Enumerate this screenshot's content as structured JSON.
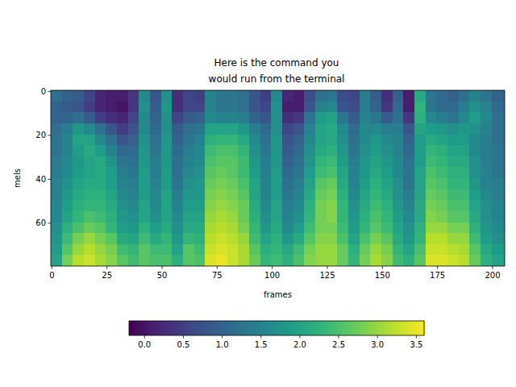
{
  "chart_data": {
    "type": "heatmap",
    "title": "Here is the command you\nwould run from the terminal",
    "x_label": "frames",
    "y_label": "mels",
    "xlim": [
      -0.5,
      205.5
    ],
    "ylim": [
      79.5,
      -0.5
    ],
    "xticks": [
      0,
      25,
      50,
      75,
      100,
      125,
      150,
      175,
      200
    ],
    "yticks": [
      0,
      20,
      40,
      60
    ],
    "x_edges": [
      -0.5,
      4.5,
      9.5,
      14.5,
      19.5,
      24.5,
      29.5,
      34.5,
      39.5,
      44.5,
      49.5,
      54.5,
      59.5,
      64.5,
      69.5,
      74.5,
      79.5,
      84.5,
      89.5,
      94.5,
      99.5,
      104.5,
      109.5,
      114.5,
      119.5,
      124.5,
      129.5,
      134.5,
      139.5,
      144.5,
      149.5,
      154.5,
      159.5,
      164.5,
      169.5,
      174.5,
      179.5,
      184.5,
      189.5,
      194.5,
      199.5,
      204.5,
      205.5
    ],
    "y_edges": [
      -0.5,
      4.5,
      9.5,
      14.5,
      19.5,
      24.5,
      29.5,
      34.5,
      39.5,
      44.5,
      49.5,
      54.5,
      59.5,
      64.5,
      69.5,
      74.5,
      79.5
    ],
    "cells": [
      [
        1.2,
        1.0,
        1.0,
        1.2,
        1.3,
        1.3,
        1.4,
        1.4,
        1.5,
        1.5,
        1.6,
        1.6,
        1.7,
        1.8,
        1.9,
        2.0
      ],
      [
        1.0,
        0.9,
        1.0,
        1.4,
        1.5,
        1.5,
        1.6,
        1.6,
        1.7,
        1.8,
        1.9,
        2.0,
        2.2,
        2.4,
        2.6,
        2.8
      ],
      [
        0.9,
        0.8,
        1.2,
        1.8,
        2.0,
        1.9,
        1.8,
        1.9,
        2.0,
        2.1,
        2.2,
        2.3,
        2.5,
        2.8,
        3.0,
        3.2
      ],
      [
        0.6,
        0.5,
        0.9,
        1.6,
        2.0,
        2.1,
        2.0,
        2.0,
        2.1,
        2.2,
        2.3,
        2.5,
        2.7,
        3.0,
        3.2,
        3.3
      ],
      [
        0.2,
        0.2,
        0.5,
        1.2,
        1.6,
        1.9,
        2.1,
        2.1,
        2.1,
        2.2,
        2.3,
        2.4,
        2.6,
        2.8,
        3.0,
        3.1
      ],
      [
        0.1,
        0.1,
        0.3,
        0.8,
        1.2,
        1.5,
        1.7,
        1.9,
        1.9,
        2.0,
        2.1,
        2.2,
        2.3,
        2.6,
        2.8,
        2.9
      ],
      [
        0.1,
        0.0,
        0.2,
        0.5,
        0.8,
        1.1,
        1.3,
        1.4,
        1.5,
        1.6,
        1.7,
        1.8,
        1.9,
        2.1,
        2.4,
        2.6
      ],
      [
        0.4,
        0.4,
        0.6,
        0.8,
        1.0,
        1.1,
        1.2,
        1.3,
        1.4,
        1.5,
        1.6,
        1.7,
        1.8,
        2.0,
        2.3,
        2.4
      ],
      [
        1.6,
        1.7,
        1.6,
        1.6,
        1.7,
        1.8,
        1.8,
        1.9,
        1.9,
        1.9,
        2.0,
        2.0,
        2.2,
        2.4,
        2.6,
        2.6
      ],
      [
        0.8,
        0.9,
        1.0,
        1.1,
        1.2,
        1.3,
        1.4,
        1.4,
        1.5,
        1.6,
        1.6,
        1.7,
        1.9,
        2.1,
        2.4,
        2.5
      ],
      [
        1.7,
        1.8,
        1.7,
        1.7,
        1.8,
        1.8,
        1.8,
        1.9,
        1.9,
        2.0,
        2.0,
        2.0,
        2.1,
        2.3,
        2.4,
        2.5
      ],
      [
        0.3,
        0.3,
        0.6,
        0.9,
        1.0,
        1.1,
        1.2,
        1.2,
        1.3,
        1.4,
        1.5,
        1.6,
        1.7,
        1.8,
        2.0,
        2.2
      ],
      [
        0.6,
        0.6,
        0.9,
        1.2,
        1.3,
        1.4,
        1.5,
        1.6,
        1.7,
        1.8,
        1.9,
        2.0,
        2.1,
        2.3,
        2.6,
        2.6
      ],
      [
        0.5,
        0.6,
        1.0,
        1.3,
        1.5,
        1.6,
        1.6,
        1.7,
        1.8,
        1.8,
        1.9,
        2.0,
        2.1,
        2.2,
        2.4,
        2.5
      ],
      [
        1.5,
        1.5,
        1.6,
        2.0,
        2.2,
        2.4,
        2.5,
        2.6,
        2.7,
        2.8,
        2.9,
        3.0,
        3.1,
        3.2,
        3.3,
        3.4
      ],
      [
        1.3,
        1.3,
        1.5,
        2.0,
        2.3,
        2.5,
        2.6,
        2.7,
        2.8,
        2.9,
        3.0,
        3.1,
        3.2,
        3.3,
        3.4,
        3.5
      ],
      [
        1.3,
        1.3,
        1.5,
        2.0,
        2.3,
        2.5,
        2.6,
        2.6,
        2.7,
        2.8,
        2.9,
        3.0,
        3.1,
        3.2,
        3.3,
        3.3
      ],
      [
        1.2,
        1.2,
        1.4,
        1.8,
        2.1,
        2.3,
        2.4,
        2.4,
        2.5,
        2.6,
        2.7,
        2.7,
        2.8,
        3.0,
        3.1,
        3.1
      ],
      [
        0.8,
        0.8,
        1.0,
        1.4,
        1.6,
        1.7,
        1.8,
        1.9,
        2.0,
        2.0,
        2.1,
        2.2,
        2.3,
        2.4,
        2.6,
        2.7
      ],
      [
        0.5,
        0.6,
        0.8,
        1.1,
        1.2,
        1.3,
        1.4,
        1.4,
        1.5,
        1.5,
        1.6,
        1.7,
        1.8,
        2.0,
        2.2,
        2.3
      ],
      [
        1.6,
        1.7,
        1.7,
        1.7,
        1.8,
        1.8,
        1.8,
        1.9,
        1.9,
        1.9,
        2.0,
        2.0,
        2.1,
        2.2,
        2.3,
        2.4
      ],
      [
        0.2,
        0.1,
        0.3,
        0.6,
        0.8,
        0.9,
        1.0,
        1.1,
        1.2,
        1.3,
        1.4,
        1.5,
        1.6,
        1.8,
        2.1,
        2.2
      ],
      [
        0.1,
        0.1,
        0.4,
        0.8,
        1.0,
        1.1,
        1.2,
        1.3,
        1.4,
        1.5,
        1.6,
        1.7,
        1.9,
        2.1,
        2.4,
        2.5
      ],
      [
        0.7,
        0.8,
        1.3,
        1.5,
        1.6,
        1.7,
        1.8,
        1.9,
        2.0,
        2.1,
        2.2,
        2.3,
        2.4,
        2.6,
        2.8,
        2.9
      ],
      [
        1.2,
        1.5,
        1.9,
        2.0,
        2.0,
        2.1,
        2.3,
        2.4,
        2.6,
        2.7,
        2.8,
        2.8,
        2.8,
        2.9,
        3.0,
        3.0
      ],
      [
        1.3,
        1.6,
        2.0,
        2.1,
        2.1,
        2.2,
        2.4,
        2.5,
        2.7,
        2.8,
        2.9,
        2.9,
        2.8,
        2.9,
        3.0,
        3.0
      ],
      [
        0.7,
        0.8,
        1.3,
        1.6,
        1.7,
        1.8,
        1.9,
        2.0,
        2.1,
        2.2,
        2.3,
        2.3,
        2.4,
        2.5,
        2.7,
        2.7
      ],
      [
        0.6,
        0.7,
        0.9,
        1.1,
        1.2,
        1.3,
        1.4,
        1.5,
        1.5,
        1.6,
        1.7,
        1.8,
        1.9,
        2.0,
        2.2,
        2.3
      ],
      [
        1.4,
        1.4,
        1.5,
        1.6,
        1.6,
        1.7,
        1.8,
        1.8,
        1.9,
        2.0,
        2.1,
        2.2,
        2.3,
        2.5,
        2.7,
        2.8
      ],
      [
        0.9,
        1.0,
        1.3,
        1.6,
        1.8,
        1.9,
        2.0,
        2.1,
        2.2,
        2.3,
        2.4,
        2.5,
        2.6,
        2.8,
        3.0,
        3.1
      ],
      [
        0.3,
        0.4,
        0.9,
        1.4,
        1.6,
        1.7,
        1.8,
        1.9,
        2.0,
        2.1,
        2.2,
        2.3,
        2.4,
        2.6,
        2.8,
        2.9
      ],
      [
        1.0,
        1.1,
        1.2,
        1.4,
        1.5,
        1.5,
        1.6,
        1.6,
        1.7,
        1.7,
        1.8,
        1.9,
        2.0,
        2.1,
        2.3,
        2.4
      ],
      [
        0.1,
        0.1,
        0.4,
        0.8,
        1.0,
        1.1,
        1.2,
        1.3,
        1.3,
        1.4,
        1.5,
        1.6,
        1.7,
        1.8,
        2.0,
        2.2
      ],
      [
        2.1,
        2.3,
        2.2,
        2.0,
        1.9,
        1.9,
        1.9,
        2.0,
        2.0,
        2.0,
        2.1,
        2.1,
        2.2,
        2.3,
        2.5,
        2.6
      ],
      [
        1.3,
        1.3,
        1.6,
        1.9,
        2.1,
        2.3,
        2.4,
        2.5,
        2.6,
        2.7,
        2.8,
        2.9,
        3.0,
        3.2,
        3.3,
        3.4
      ],
      [
        1.1,
        1.1,
        1.4,
        1.8,
        2.0,
        2.2,
        2.3,
        2.4,
        2.5,
        2.6,
        2.7,
        2.8,
        3.0,
        3.2,
        3.3,
        3.4
      ],
      [
        1.0,
        1.1,
        1.3,
        1.7,
        1.9,
        2.0,
        2.1,
        2.2,
        2.3,
        2.4,
        2.5,
        2.6,
        2.8,
        3.0,
        3.2,
        3.3
      ],
      [
        1.2,
        1.4,
        1.6,
        1.8,
        1.9,
        2.0,
        2.1,
        2.2,
        2.3,
        2.4,
        2.5,
        2.6,
        2.8,
        3.0,
        3.1,
        3.2
      ],
      [
        1.5,
        1.7,
        1.9,
        1.7,
        1.6,
        1.6,
        1.7,
        1.7,
        1.8,
        1.9,
        2.0,
        2.1,
        2.2,
        2.4,
        2.6,
        2.7
      ],
      [
        1.3,
        1.5,
        1.6,
        1.5,
        1.4,
        1.4,
        1.4,
        1.5,
        1.5,
        1.6,
        1.7,
        1.7,
        1.8,
        1.9,
        2.1,
        2.2
      ],
      [
        1.0,
        1.1,
        1.2,
        1.2,
        1.2,
        1.3,
        1.3,
        1.3,
        1.4,
        1.4,
        1.5,
        1.5,
        1.6,
        1.7,
        1.9,
        2.0
      ],
      [
        1.0,
        1.1,
        1.2,
        1.2,
        1.2,
        1.3,
        1.3,
        1.3,
        1.4,
        1.4,
        1.5,
        1.5,
        1.6,
        1.7,
        1.9,
        2.0
      ]
    ],
    "clim": [
      -0.2,
      3.6
    ],
    "cticks": [
      {
        "value": 0,
        "label": "0.0"
      },
      {
        "value": 0.5,
        "label": "0.5"
      },
      {
        "value": 1,
        "label": "1.0"
      },
      {
        "value": 1.5,
        "label": "1.5"
      },
      {
        "value": 2,
        "label": "2.0"
      },
      {
        "value": 2.5,
        "label": "2.5"
      },
      {
        "value": 3,
        "label": "3.0"
      },
      {
        "value": 3.5,
        "label": "3.5"
      }
    ]
  }
}
